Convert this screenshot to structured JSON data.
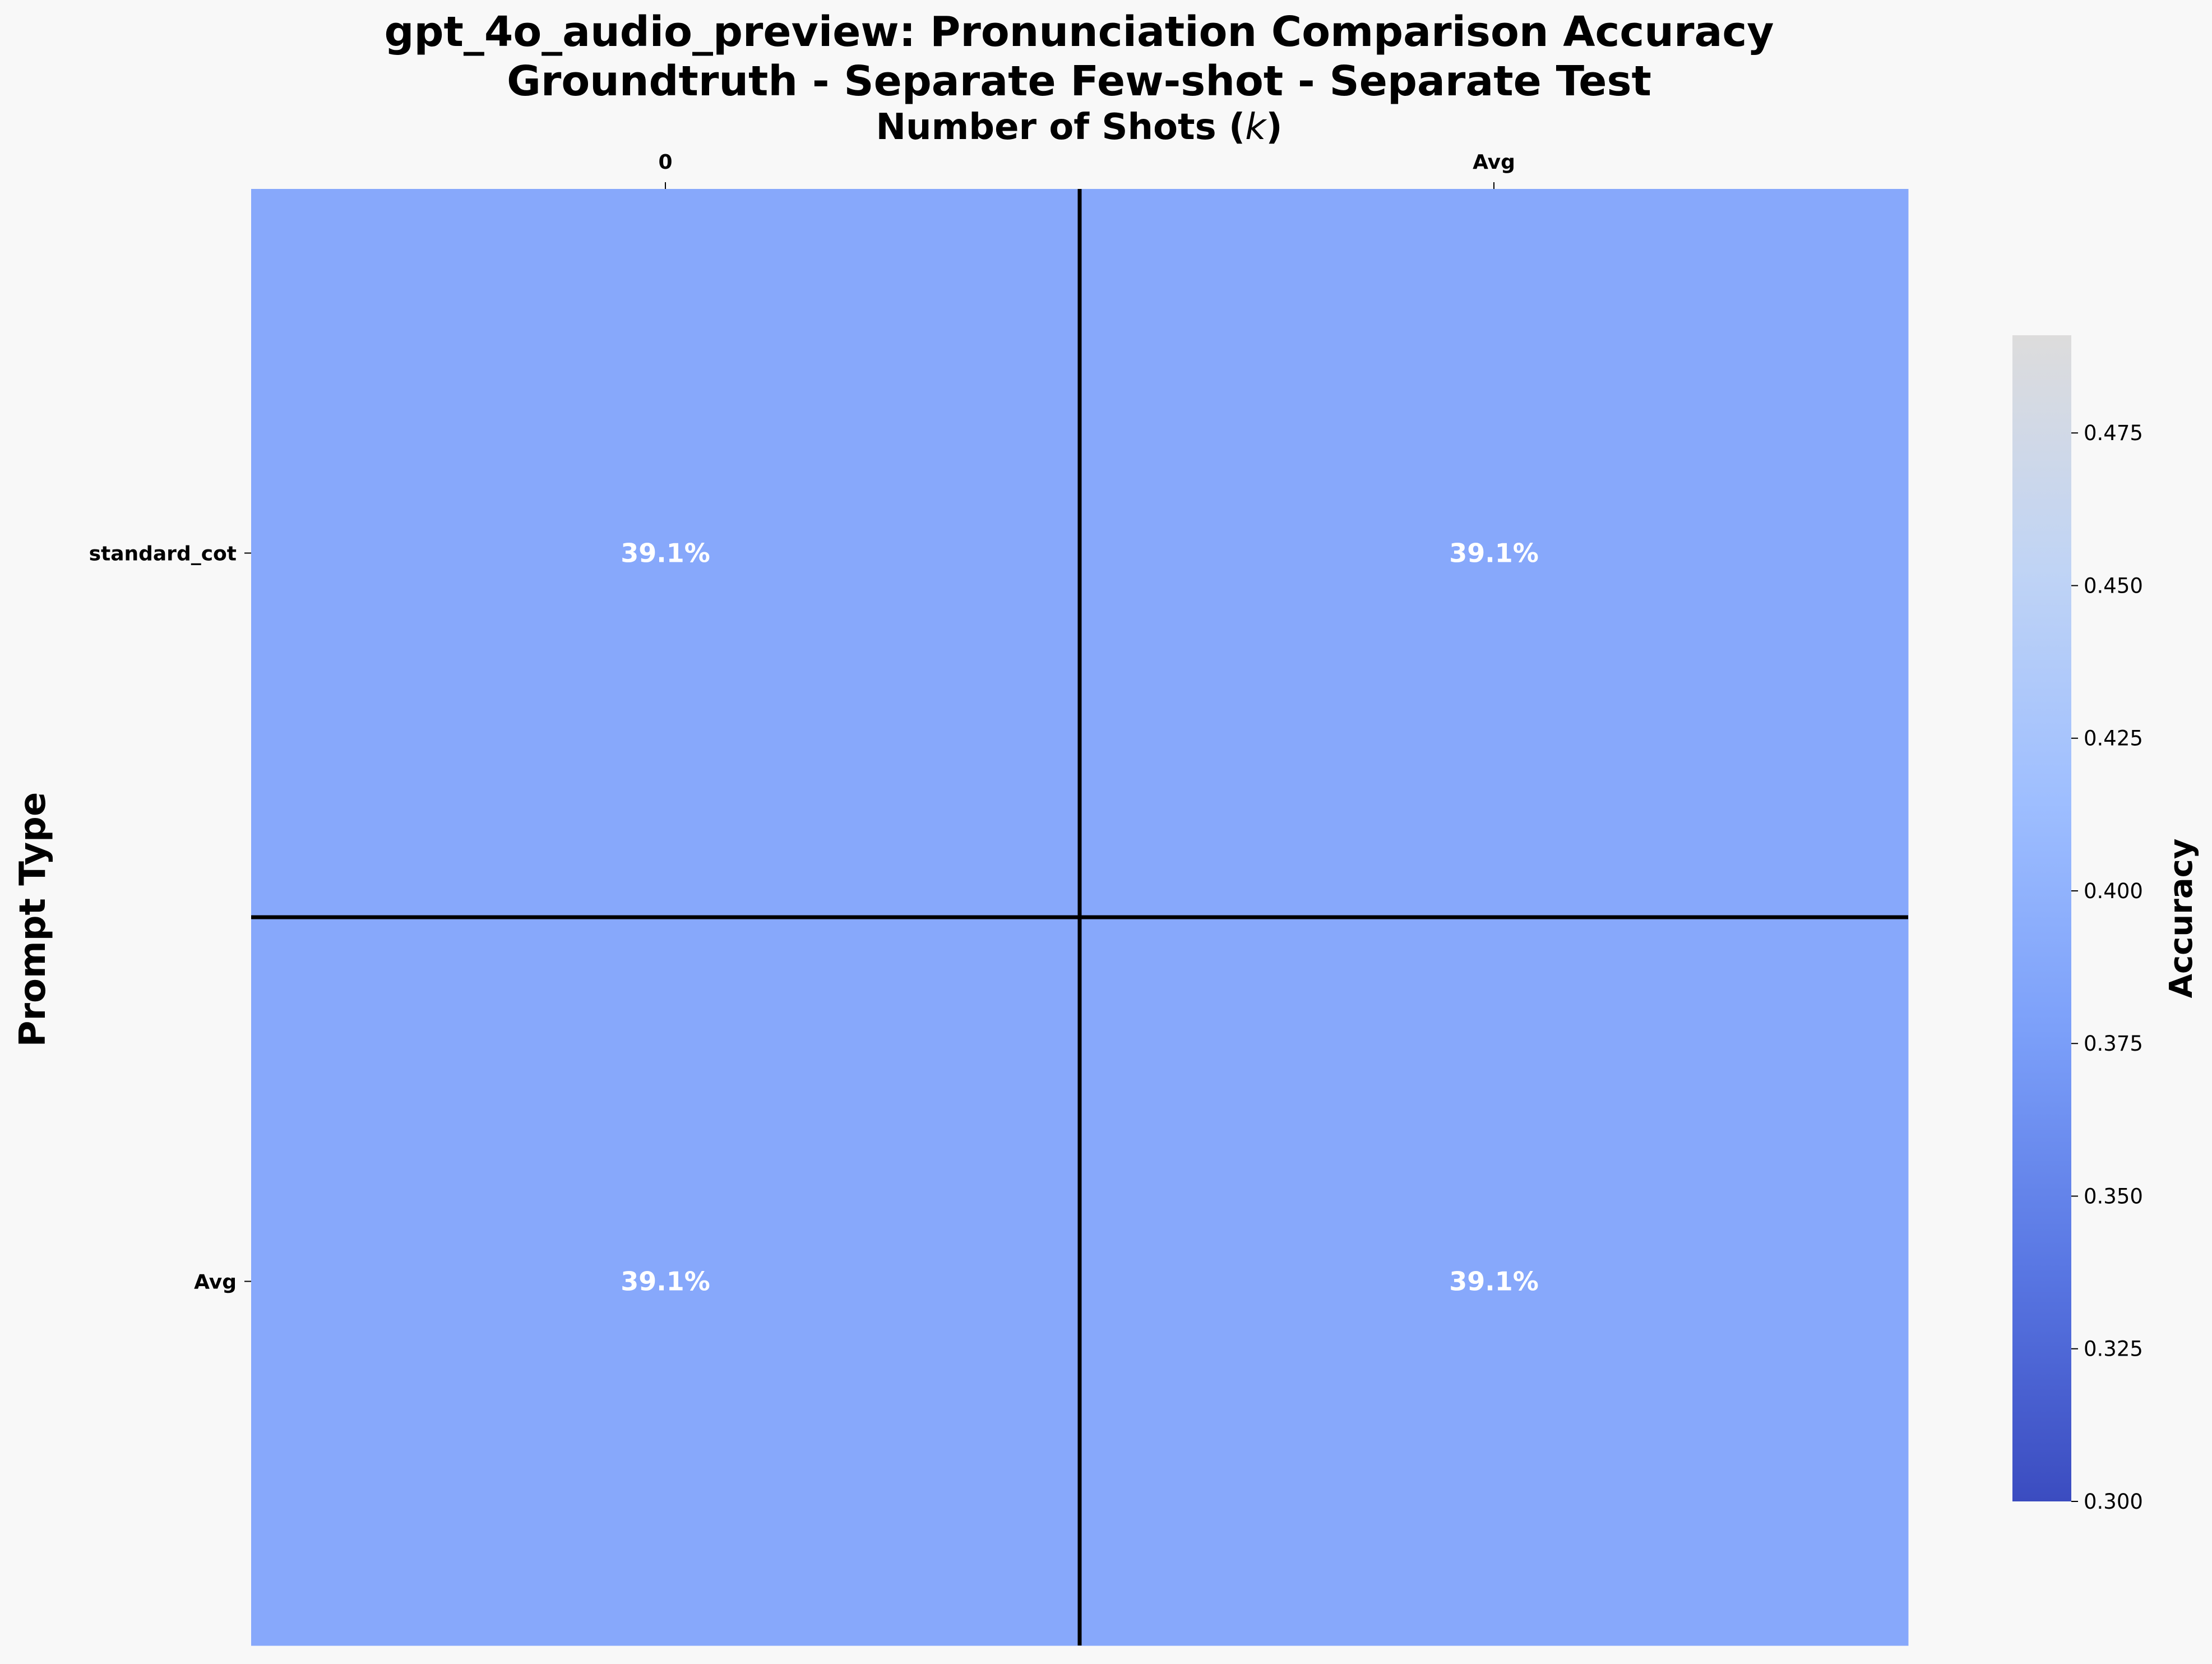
{
  "chart_data": {
    "type": "heatmap",
    "title_line1": "gpt_4o_audio_preview: Pronunciation Comparison Accuracy",
    "title_line2": "Groundtruth - Separate Few-shot - Separate Test",
    "xlabel": "Number of Shots (k)",
    "ylabel": "Prompt Type",
    "x_categories": [
      "0",
      "Avg"
    ],
    "y_categories": [
      "standard_cot",
      "Avg"
    ],
    "values": [
      [
        0.391,
        0.391
      ],
      [
        0.391,
        0.391
      ]
    ],
    "cell_labels": [
      [
        "39.1%",
        "39.1%"
      ],
      [
        "39.1%",
        "39.1%"
      ]
    ],
    "colorbar": {
      "label": "Accuracy",
      "range": [
        0.3,
        0.491
      ],
      "ticks": [
        "0.300",
        "0.325",
        "0.350",
        "0.375",
        "0.400",
        "0.425",
        "0.450",
        "0.475"
      ],
      "colors": [
        "#3b4cc0",
        "#5977e3",
        "#7b9ff9",
        "#9ebeff",
        "#c0d4f5",
        "#dddcdc"
      ]
    },
    "cell_color": "#87a8fb",
    "separator_color": "#000000"
  }
}
